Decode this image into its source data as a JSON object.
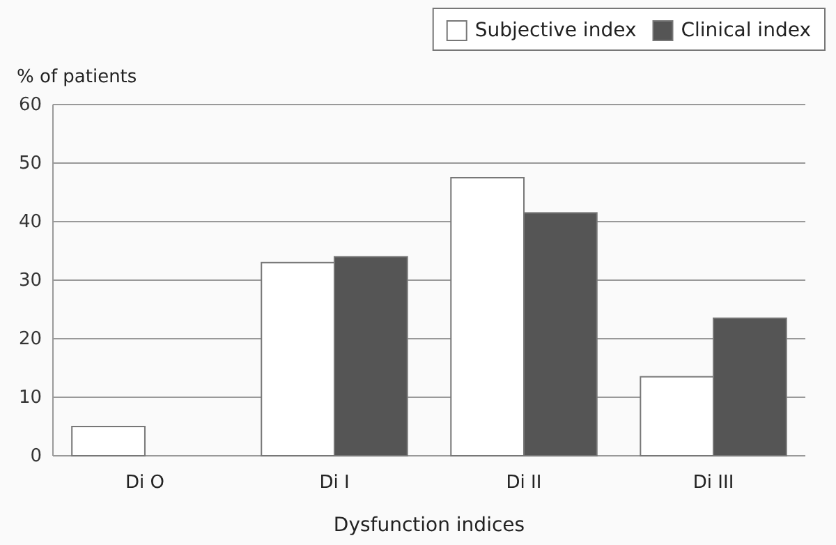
{
  "chart_data": {
    "type": "bar",
    "xlabel": "Dysfunction indices",
    "ylabel": "% of patients",
    "categories": [
      "Di O",
      "Di I",
      "Di II",
      "Di III"
    ],
    "series": [
      {
        "name": "Subjective index",
        "color": "#ffffff",
        "values": [
          5,
          33,
          47.5,
          13.5
        ]
      },
      {
        "name": "Clinical index",
        "color": "#555555",
        "values": [
          0,
          34,
          41.5,
          23.5
        ]
      }
    ],
    "ylim": [
      0,
      60
    ],
    "yticks": [
      0,
      10,
      20,
      30,
      40,
      50,
      60
    ],
    "grid": "y",
    "legend": "top right"
  }
}
